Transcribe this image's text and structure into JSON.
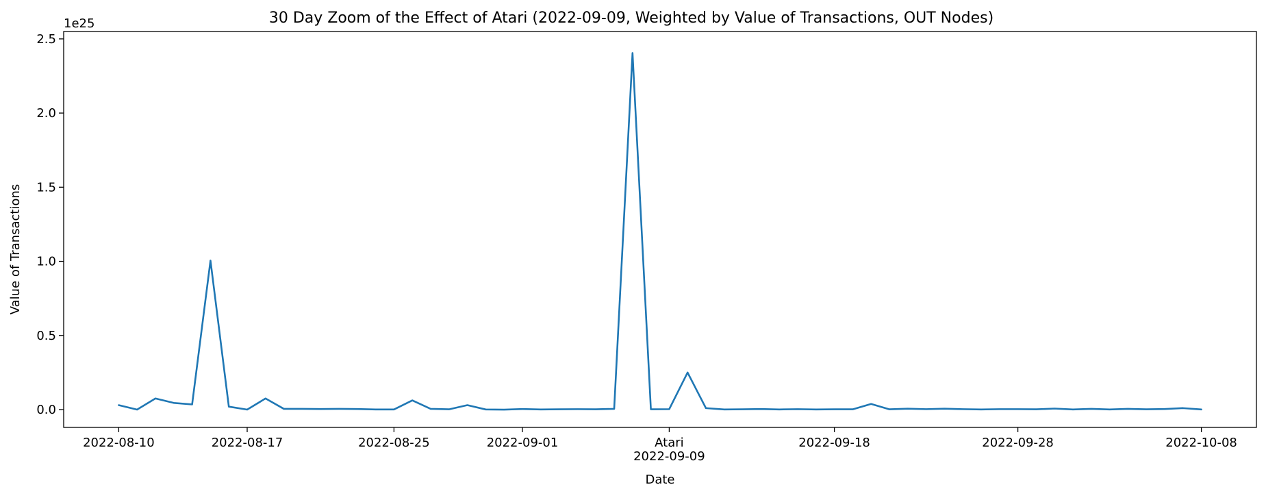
{
  "chart_data": {
    "type": "line",
    "title": "30 Day Zoom of the Effect of Atari (2022-09-09, Weighted by Value of Transactions, OUT Nodes)",
    "xlabel": "Date",
    "ylabel": "Value of Transactions",
    "y_offset_text": "1e25",
    "y_multiplier": 1e+25,
    "ylim": [
      -0.12,
      2.55
    ],
    "xlim": [
      "2022-08-07",
      "2022-10-11"
    ],
    "grid": false,
    "legend": "none",
    "line_color": "#1f77b4",
    "y_ticks": [
      0.0,
      0.5,
      1.0,
      1.5,
      2.0,
      2.5
    ],
    "y_tick_labels": [
      "0.0",
      "0.5",
      "1.0",
      "1.5",
      "2.0",
      "2.5"
    ],
    "x_ticks": [
      {
        "date": "2022-08-10",
        "label": "2022-08-10"
      },
      {
        "date": "2022-08-17",
        "label": "2022-08-17"
      },
      {
        "date": "2022-08-25",
        "label": "2022-08-25"
      },
      {
        "date": "2022-09-01",
        "label": "2022-09-01"
      },
      {
        "date": "2022-09-09",
        "label": "2022-09-09",
        "annotation": "Atari"
      },
      {
        "date": "2022-09-18",
        "label": "2022-09-18"
      },
      {
        "date": "2022-09-28",
        "label": "2022-09-28"
      },
      {
        "date": "2022-10-08",
        "label": "2022-10-08"
      }
    ],
    "series": [
      {
        "x": [
          "2022-08-10",
          "2022-08-11",
          "2022-08-12",
          "2022-08-13",
          "2022-08-14",
          "2022-08-15",
          "2022-08-16",
          "2022-08-17",
          "2022-08-18",
          "2022-08-19",
          "2022-08-20",
          "2022-08-21",
          "2022-08-22",
          "2022-08-23",
          "2022-08-24",
          "2022-08-25",
          "2022-08-26",
          "2022-08-27",
          "2022-08-28",
          "2022-08-29",
          "2022-08-30",
          "2022-08-31",
          "2022-09-01",
          "2022-09-02",
          "2022-09-03",
          "2022-09-04",
          "2022-09-05",
          "2022-09-06",
          "2022-09-07",
          "2022-09-08",
          "2022-09-09",
          "2022-09-10",
          "2022-09-11",
          "2022-09-12",
          "2022-09-13",
          "2022-09-14",
          "2022-09-15",
          "2022-09-16",
          "2022-09-17",
          "2022-09-18",
          "2022-09-19",
          "2022-09-20",
          "2022-09-21",
          "2022-09-22",
          "2022-09-23",
          "2022-09-24",
          "2022-09-25",
          "2022-09-26",
          "2022-09-27",
          "2022-09-28",
          "2022-09-29",
          "2022-09-30",
          "2022-10-01",
          "2022-10-02",
          "2022-10-03",
          "2022-10-04",
          "2022-10-05",
          "2022-10-06",
          "2022-10-07",
          "2022-10-08"
        ],
        "y": [
          0.03,
          0.0,
          0.075,
          0.045,
          0.035,
          1.005,
          0.02,
          0.0,
          0.075,
          0.005,
          0.005,
          0.004,
          0.005,
          0.004,
          0.001,
          0.001,
          0.062,
          0.005,
          0.002,
          0.03,
          0.001,
          0.0,
          0.004,
          0.001,
          0.002,
          0.003,
          0.002,
          0.005,
          2.405,
          0.002,
          0.003,
          0.25,
          0.01,
          0.001,
          0.002,
          0.004,
          0.001,
          0.003,
          0.001,
          0.002,
          0.002,
          0.038,
          0.002,
          0.006,
          0.003,
          0.006,
          0.003,
          0.001,
          0.003,
          0.003,
          0.002,
          0.007,
          0.001,
          0.005,
          0.001,
          0.005,
          0.002,
          0.004,
          0.01,
          0.001
        ]
      }
    ]
  }
}
